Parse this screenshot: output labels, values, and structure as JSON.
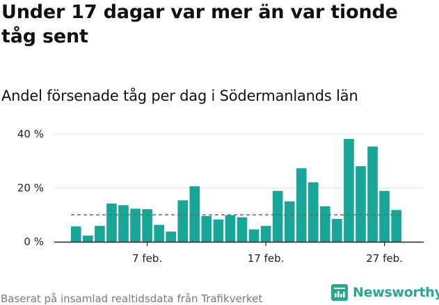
{
  "header": {
    "title": "Under 17 dagar var mer än var tionde tåg sent",
    "subtitle": "Andel försenade tåg per dag i Södermanlands län"
  },
  "footer": {
    "note": "Baserat på insamlad realtidsdata från Trafikverket",
    "brand": "Newsworthy"
  },
  "colors": {
    "bar": "#17a697",
    "reference_line": "#6b6b6b",
    "brand": "#2aa58e",
    "grid": "#e3e3e3",
    "axis": "#222222"
  },
  "chart_data": {
    "type": "bar",
    "x": [
      1,
      2,
      3,
      4,
      5,
      6,
      7,
      8,
      9,
      10,
      11,
      12,
      13,
      14,
      15,
      16,
      17,
      18,
      19,
      20,
      21,
      22,
      23,
      24,
      25,
      26,
      27,
      28
    ],
    "values": [
      5.7,
      2.3,
      5.9,
      14.2,
      13.6,
      12.3,
      12.1,
      6.3,
      3.8,
      15.4,
      20.6,
      9.6,
      8.3,
      9.9,
      9.1,
      4.6,
      5.9,
      18.9,
      15.0,
      27.3,
      22.1,
      13.2,
      8.5,
      38.2,
      28.1,
      35.4,
      18.9,
      11.8
    ],
    "xticks": [
      {
        "x": 7,
        "label": "7 feb."
      },
      {
        "x": 17,
        "label": "17 feb."
      },
      {
        "x": 27,
        "label": "27 feb."
      }
    ],
    "yticks": [
      {
        "value": 0,
        "label": "0 %"
      },
      {
        "value": 20,
        "label": "20 %"
      },
      {
        "value": 40,
        "label": "40 %"
      }
    ],
    "ylim": [
      0,
      40
    ],
    "reference_line": {
      "value": 10,
      "style": "dashed"
    },
    "grid": true,
    "legend": false
  }
}
